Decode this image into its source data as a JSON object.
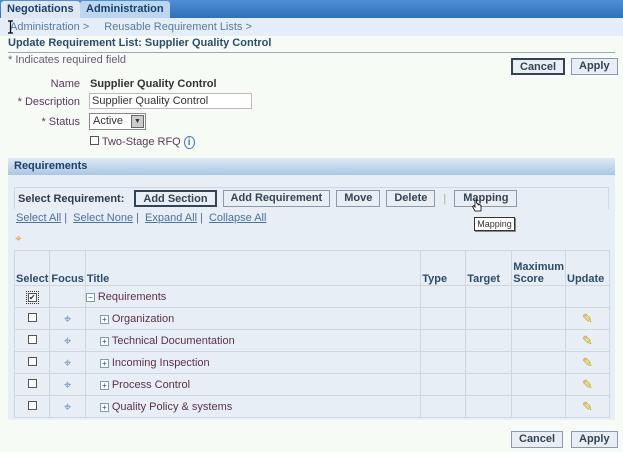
{
  "tabs": [
    {
      "label": "Negotiations"
    },
    {
      "label": "Administration"
    }
  ],
  "breadcrumbs": [
    "Administration  >",
    "Reusable Requirement Lists  >"
  ],
  "page_title": "Update Requirement List: Supplier Quality Control",
  "required_note": "* Indicates required field",
  "buttons": {
    "cancel": "Cancel",
    "apply": "Apply"
  },
  "form": {
    "name_label": "Name",
    "name_value": "Supplier Quality Control",
    "description_label": "* Description",
    "description_value": "Supplier Quality Control",
    "status_label": "* Status",
    "status_value": "Active",
    "two_stage_label": "Two-Stage RFQ",
    "two_stage_checked": false
  },
  "requirements": {
    "header": "Requirements",
    "select_label": "Select Requirement:",
    "actions": [
      "Add Section",
      "Add Requirement",
      "Move",
      "Delete",
      "Mapping"
    ],
    "tooltip": "Mapping",
    "links": [
      "Select All",
      "Select None",
      "Expand All",
      "Collapse All"
    ],
    "columns": [
      "Select",
      "Focus",
      "Title",
      "Type",
      "Target",
      "Maximum Score",
      "Update"
    ],
    "root": "Requirements",
    "rows": [
      {
        "title": "Organization"
      },
      {
        "title": "Technical Documentation"
      },
      {
        "title": "Incoming Inspection"
      },
      {
        "title": "Process Control"
      },
      {
        "title": "Quality Policy & systems"
      }
    ]
  }
}
